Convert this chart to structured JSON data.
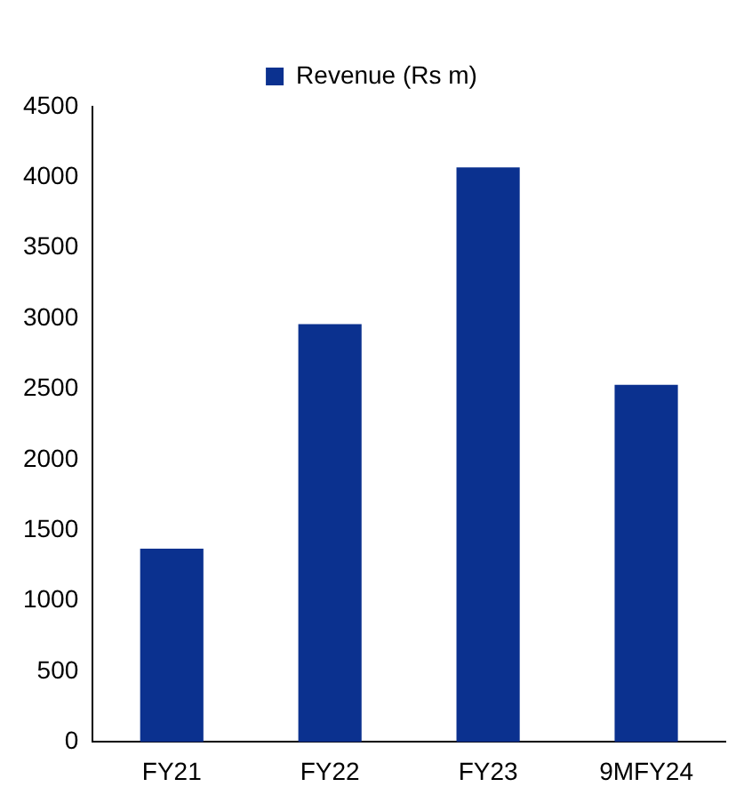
{
  "chart_data": {
    "type": "bar",
    "categories": [
      "FY21",
      "FY22",
      "FY23",
      "9MFY24"
    ],
    "series": [
      {
        "name": "Revenue (Rs m)",
        "color": "#0b318f",
        "values": [
          1370,
          2960,
          4070,
          2530
        ]
      }
    ],
    "ylim": [
      0,
      4500
    ],
    "yticks": [
      0,
      500,
      1000,
      1500,
      2000,
      2500,
      3000,
      3500,
      4000,
      4500
    ],
    "grid": false,
    "legend": "top"
  }
}
